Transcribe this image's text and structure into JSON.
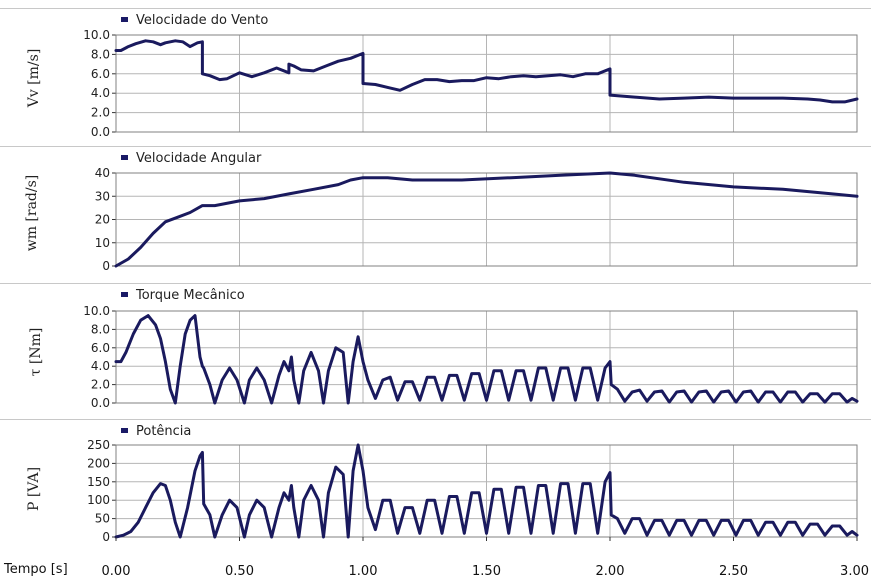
{
  "colors": {
    "series": "#1a1a5e",
    "grid": "#b5b5b5",
    "frame": "#808080",
    "legend_swatch": "#1a1a66"
  },
  "x_axis": {
    "title": "Tempo [s]",
    "ticks": [
      "0.00",
      "0.50",
      "1.00",
      "1.50",
      "2.00",
      "2.50",
      "3.00"
    ],
    "range": [
      0,
      3
    ]
  },
  "chart_data": [
    {
      "type": "line",
      "title": "Velocidade do Vento",
      "ylabel": "Vv [m/s]",
      "ylim": [
        0,
        10
      ],
      "yticks": [
        "0.0",
        "2.0",
        "4.0",
        "6.0",
        "8.0",
        "10.0"
      ],
      "grid": true,
      "x": [
        0,
        0.02,
        0.05,
        0.08,
        0.12,
        0.15,
        0.18,
        0.2,
        0.24,
        0.27,
        0.3,
        0.33,
        0.35,
        0.35,
        0.38,
        0.42,
        0.45,
        0.5,
        0.55,
        0.6,
        0.65,
        0.7,
        0.7,
        0.72,
        0.75,
        0.8,
        0.85,
        0.9,
        0.95,
        1.0,
        1.0,
        1.05,
        1.1,
        1.15,
        1.2,
        1.25,
        1.3,
        1.35,
        1.4,
        1.45,
        1.5,
        1.55,
        1.6,
        1.65,
        1.7,
        1.75,
        1.8,
        1.85,
        1.9,
        1.95,
        2.0,
        2.0,
        2.1,
        2.2,
        2.3,
        2.4,
        2.5,
        2.6,
        2.7,
        2.8,
        2.85,
        2.9,
        2.95,
        3.0
      ],
      "values": [
        8.4,
        8.4,
        8.8,
        9.1,
        9.4,
        9.3,
        9.0,
        9.2,
        9.4,
        9.3,
        8.8,
        9.2,
        9.3,
        6.0,
        5.8,
        5.4,
        5.5,
        6.1,
        5.7,
        6.1,
        6.6,
        6.1,
        7.0,
        6.8,
        6.4,
        6.3,
        6.8,
        7.3,
        7.6,
        8.1,
        5.0,
        4.9,
        4.6,
        4.3,
        4.9,
        5.4,
        5.4,
        5.2,
        5.3,
        5.3,
        5.6,
        5.5,
        5.7,
        5.8,
        5.7,
        5.8,
        5.9,
        5.7,
        6.0,
        6.0,
        6.5,
        3.8,
        3.6,
        3.4,
        3.5,
        3.6,
        3.5,
        3.5,
        3.5,
        3.4,
        3.3,
        3.1,
        3.1,
        3.4
      ]
    },
    {
      "type": "line",
      "title": "Velocidade Angular",
      "ylabel": "wm [rad/s]",
      "ylim": [
        0,
        40
      ],
      "yticks": [
        "0",
        "10",
        "20",
        "30",
        "40"
      ],
      "grid": true,
      "x": [
        0,
        0.05,
        0.1,
        0.15,
        0.2,
        0.25,
        0.3,
        0.35,
        0.4,
        0.5,
        0.6,
        0.7,
        0.8,
        0.9,
        0.95,
        1.0,
        1.1,
        1.2,
        1.4,
        1.6,
        1.8,
        2.0,
        2.1,
        2.3,
        2.5,
        2.7,
        2.9,
        3.0
      ],
      "values": [
        0,
        3,
        8,
        14,
        19,
        21,
        23,
        26,
        26,
        28,
        29,
        31,
        33,
        35,
        37,
        38,
        38,
        37,
        37,
        38,
        39,
        40,
        39,
        36,
        34,
        33,
        31,
        30
      ]
    },
    {
      "type": "line",
      "title": "Torque Mecânico",
      "ylabel": "τ [Nm]",
      "ylim": [
        0,
        10
      ],
      "yticks": [
        "0.0",
        "2.0",
        "4.0",
        "6.0",
        "8.0",
        "10.0"
      ],
      "grid": true,
      "x": [
        0,
        0.02,
        0.04,
        0.07,
        0.1,
        0.13,
        0.16,
        0.18,
        0.2,
        0.22,
        0.24,
        0.26,
        0.28,
        0.3,
        0.32,
        0.34,
        0.35,
        0.355,
        0.38,
        0.4,
        0.43,
        0.46,
        0.49,
        0.52,
        0.54,
        0.57,
        0.6,
        0.63,
        0.66,
        0.68,
        0.7,
        0.71,
        0.72,
        0.74,
        0.76,
        0.79,
        0.82,
        0.84,
        0.86,
        0.89,
        0.92,
        0.94,
        0.96,
        0.98,
        1.0,
        1.02,
        1.05,
        1.08,
        1.11,
        1.14,
        1.17,
        1.2,
        1.23,
        1.26,
        1.29,
        1.32,
        1.35,
        1.38,
        1.41,
        1.44,
        1.47,
        1.5,
        1.53,
        1.56,
        1.59,
        1.62,
        1.65,
        1.68,
        1.71,
        1.74,
        1.77,
        1.8,
        1.83,
        1.86,
        1.89,
        1.92,
        1.95,
        1.98,
        2.0,
        2.005,
        2.03,
        2.06,
        2.09,
        2.12,
        2.15,
        2.18,
        2.21,
        2.24,
        2.27,
        2.3,
        2.33,
        2.36,
        2.39,
        2.42,
        2.45,
        2.48,
        2.51,
        2.54,
        2.57,
        2.6,
        2.63,
        2.66,
        2.69,
        2.72,
        2.75,
        2.78,
        2.81,
        2.84,
        2.87,
        2.9,
        2.93,
        2.96,
        2.98,
        3.0
      ],
      "values": [
        4.5,
        4.5,
        5.5,
        7.5,
        9.0,
        9.5,
        8.5,
        7.0,
        4.5,
        1.5,
        0.0,
        4.0,
        7.5,
        9.0,
        9.5,
        5.0,
        4.0,
        3.8,
        2.0,
        0.0,
        2.5,
        3.8,
        2.5,
        0.0,
        2.5,
        3.8,
        2.5,
        0.0,
        3.0,
        4.5,
        3.5,
        5.0,
        2.5,
        0.0,
        3.5,
        5.5,
        3.5,
        0.0,
        3.5,
        6.0,
        5.5,
        0.0,
        4.5,
        7.2,
        4.5,
        2.5,
        0.5,
        2.5,
        2.8,
        0.3,
        2.3,
        2.3,
        0.3,
        2.8,
        2.8,
        0.3,
        3.0,
        3.0,
        0.3,
        3.2,
        3.2,
        0.3,
        3.5,
        3.5,
        0.3,
        3.5,
        3.5,
        0.3,
        3.8,
        3.8,
        0.3,
        3.8,
        3.8,
        0.3,
        3.8,
        3.8,
        0.3,
        3.8,
        4.5,
        2.0,
        1.5,
        0.2,
        1.2,
        1.4,
        0.2,
        1.2,
        1.3,
        0.1,
        1.2,
        1.3,
        0.1,
        1.2,
        1.3,
        0.1,
        1.2,
        1.3,
        0.1,
        1.2,
        1.3,
        0.1,
        1.2,
        1.2,
        0.1,
        1.2,
        1.2,
        0.1,
        1.0,
        1.0,
        0.1,
        1.0,
        1.0,
        0.1,
        0.5,
        0.2
      ]
    },
    {
      "type": "line",
      "title": "Potência",
      "ylabel": "P [VA]",
      "ylim": [
        0,
        250
      ],
      "yticks": [
        "0",
        "50",
        "100",
        "150",
        "200",
        "250"
      ],
      "grid": true,
      "x": [
        0,
        0.03,
        0.06,
        0.09,
        0.12,
        0.15,
        0.18,
        0.2,
        0.22,
        0.24,
        0.26,
        0.29,
        0.32,
        0.34,
        0.35,
        0.355,
        0.38,
        0.4,
        0.43,
        0.46,
        0.49,
        0.52,
        0.54,
        0.57,
        0.6,
        0.63,
        0.66,
        0.68,
        0.7,
        0.71,
        0.72,
        0.74,
        0.76,
        0.79,
        0.82,
        0.84,
        0.86,
        0.89,
        0.92,
        0.94,
        0.96,
        0.98,
        1.0,
        1.02,
        1.05,
        1.08,
        1.11,
        1.14,
        1.17,
        1.2,
        1.23,
        1.26,
        1.29,
        1.32,
        1.35,
        1.38,
        1.41,
        1.44,
        1.47,
        1.5,
        1.53,
        1.56,
        1.59,
        1.62,
        1.65,
        1.68,
        1.71,
        1.74,
        1.77,
        1.8,
        1.83,
        1.86,
        1.89,
        1.92,
        1.95,
        1.98,
        2.0,
        2.005,
        2.03,
        2.06,
        2.09,
        2.12,
        2.15,
        2.18,
        2.21,
        2.24,
        2.27,
        2.3,
        2.33,
        2.36,
        2.39,
        2.42,
        2.45,
        2.48,
        2.51,
        2.54,
        2.57,
        2.6,
        2.63,
        2.66,
        2.69,
        2.72,
        2.75,
        2.78,
        2.81,
        2.84,
        2.87,
        2.9,
        2.93,
        2.96,
        2.98,
        3.0
      ],
      "values": [
        0,
        5,
        15,
        40,
        80,
        120,
        145,
        140,
        100,
        40,
        0,
        80,
        180,
        220,
        230,
        90,
        60,
        0,
        60,
        100,
        80,
        0,
        60,
        100,
        80,
        0,
        80,
        120,
        100,
        140,
        80,
        0,
        100,
        140,
        100,
        0,
        120,
        190,
        170,
        0,
        180,
        250,
        180,
        80,
        20,
        100,
        100,
        10,
        80,
        80,
        10,
        100,
        100,
        10,
        110,
        110,
        10,
        120,
        120,
        10,
        130,
        130,
        10,
        135,
        135,
        10,
        140,
        140,
        10,
        145,
        145,
        10,
        145,
        145,
        10,
        150,
        175,
        60,
        50,
        10,
        50,
        50,
        5,
        45,
        45,
        5,
        45,
        45,
        5,
        45,
        45,
        5,
        45,
        45,
        5,
        45,
        45,
        5,
        40,
        40,
        5,
        40,
        40,
        5,
        35,
        35,
        5,
        30,
        30,
        5,
        15,
        5
      ]
    }
  ]
}
